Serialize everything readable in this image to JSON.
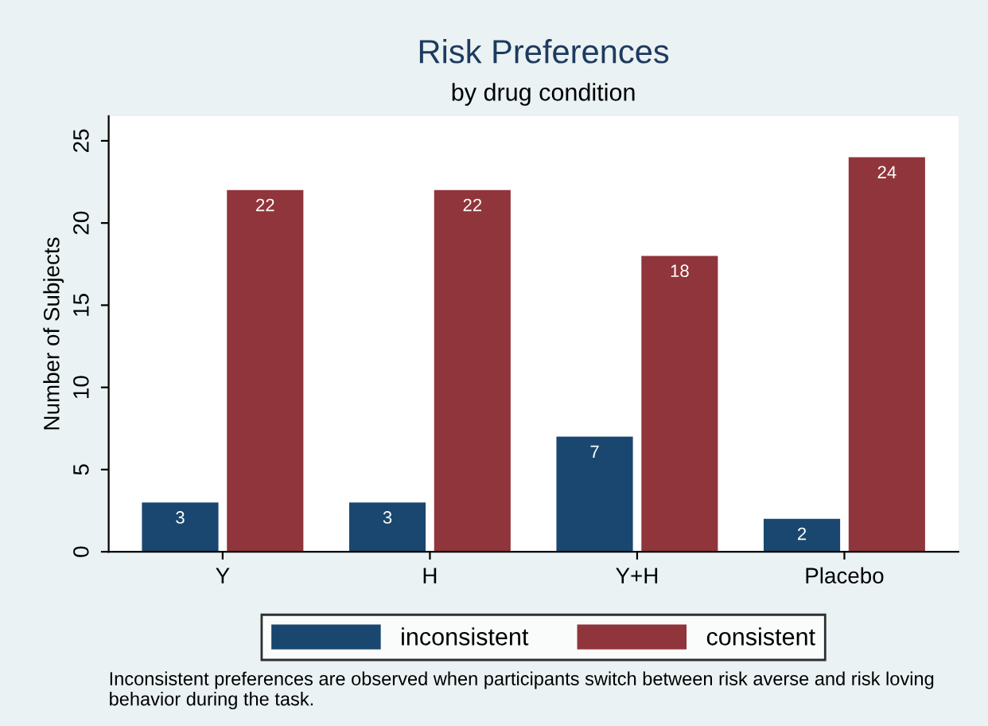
{
  "chart_data": {
    "type": "bar",
    "title": "Risk Preferences",
    "subtitle": "by drug condition",
    "ylabel": "Number of Subjects",
    "categories": [
      "Y",
      "H",
      "Y+H",
      "Placebo"
    ],
    "series": [
      {
        "name": "inconsistent",
        "color": "#1a476f",
        "values": [
          3,
          3,
          7,
          2
        ]
      },
      {
        "name": "consistent",
        "color": "#90353b",
        "values": [
          22,
          22,
          18,
          24
        ]
      }
    ],
    "ylim": [
      0,
      26.5
    ],
    "yticks": [
      0,
      5,
      10,
      15,
      20,
      25
    ],
    "grid": false,
    "legend": "bottom",
    "data_labels": true,
    "annotations": [
      "Inconsistent preferences are observed when participants switch between risk averse and risk loving behavior during the task."
    ]
  }
}
